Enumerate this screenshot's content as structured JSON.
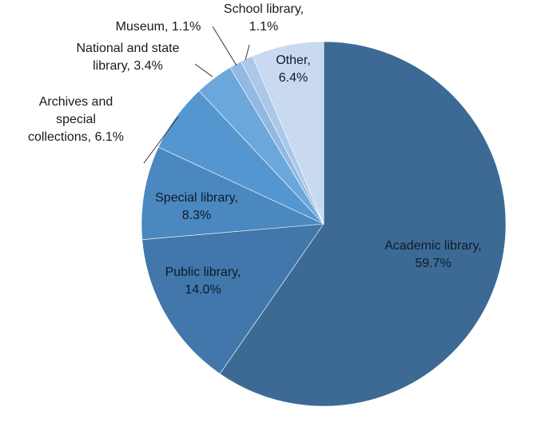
{
  "chart_data": {
    "type": "pie",
    "start": "12 o'clock",
    "direction": "clockwise",
    "slices": [
      {
        "label_lines": [
          "Academic library,",
          "59.7%"
        ],
        "category": "Academic library",
        "value": 59.7,
        "color": "#3c6a95"
      },
      {
        "label_lines": [
          "Public library,",
          "14.0%"
        ],
        "category": "Public library",
        "value": 14.0,
        "color": "#4177ab"
      },
      {
        "label_lines": [
          "Special library,",
          "8.3%"
        ],
        "category": "Special library",
        "value": 8.3,
        "color": "#4b88bf"
      },
      {
        "label_lines": [
          "Archives and",
          "special",
          "collections, 6.1%"
        ],
        "category": "Archives and special collections",
        "value": 6.1,
        "color": "#5497d0"
      },
      {
        "label_lines": [
          "National and state",
          "library, 3.4%"
        ],
        "category": "National and state library",
        "value": 3.4,
        "color": "#6ca7db"
      },
      {
        "label_lines": [
          "Museum, 1.1%"
        ],
        "category": "Museum",
        "value": 1.1,
        "color": "#93b9e2"
      },
      {
        "label_lines": [
          "School library,",
          "1.1%"
        ],
        "category": "School library",
        "value": 1.1,
        "color": "#aac8e9"
      },
      {
        "label_lines": [
          "Other,",
          "6.4%"
        ],
        "category": "Other",
        "value": 6.4,
        "color": "#c9d9ef"
      }
    ]
  }
}
